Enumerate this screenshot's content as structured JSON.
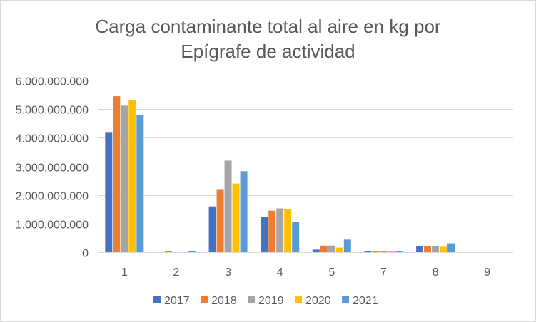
{
  "chart_data": {
    "type": "bar",
    "title": [
      "Carga contaminante total al aire en kg por",
      "Epígrafe de actividad"
    ],
    "xlabel": "",
    "ylabel": "",
    "categories": [
      "1",
      "2",
      "3",
      "4",
      "5",
      "7",
      "8",
      "9"
    ],
    "ylim": [
      0,
      6000000000
    ],
    "yticks": [
      0,
      1000000000,
      2000000000,
      3000000000,
      4000000000,
      5000000000,
      6000000000
    ],
    "ytick_labels": [
      "0",
      "1.000.000.000",
      "2.000.000.000",
      "3.000.000.000",
      "4.000.000.000",
      "5.000.000.000",
      "6.000.000.000"
    ],
    "grid": true,
    "legend_position": "bottom",
    "series": [
      {
        "name": "2017",
        "color": "#4472c4",
        "values": [
          4200000000,
          0,
          1600000000,
          1230000000,
          90000000,
          40000000,
          210000000,
          0
        ]
      },
      {
        "name": "2018",
        "color": "#ed7d31",
        "values": [
          5450000000,
          50000000,
          2180000000,
          1450000000,
          230000000,
          40000000,
          210000000,
          0
        ]
      },
      {
        "name": "2019",
        "color": "#a5a5a5",
        "values": [
          5120000000,
          0,
          3200000000,
          1530000000,
          230000000,
          40000000,
          210000000,
          0
        ]
      },
      {
        "name": "2020",
        "color": "#ffc000",
        "values": [
          5320000000,
          0,
          2400000000,
          1500000000,
          160000000,
          40000000,
          190000000,
          0
        ]
      },
      {
        "name": "2021",
        "color": "#5b9bd5",
        "values": [
          4800000000,
          40000000,
          2830000000,
          1060000000,
          440000000,
          40000000,
          310000000,
          0
        ]
      }
    ]
  }
}
